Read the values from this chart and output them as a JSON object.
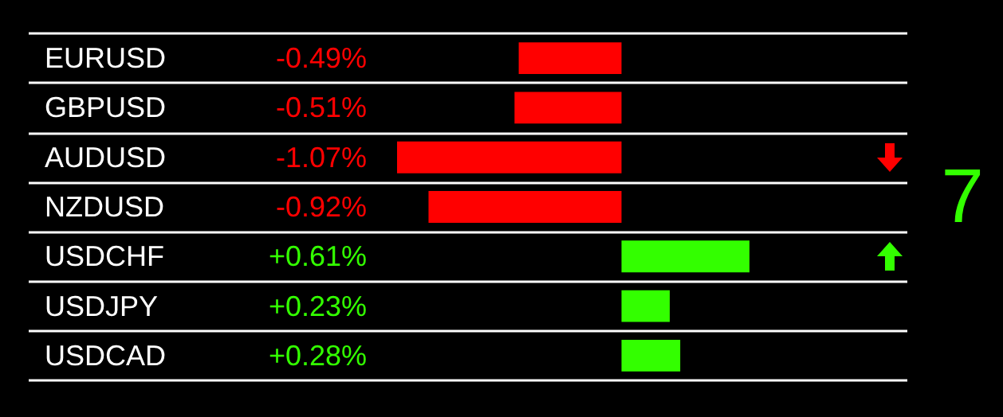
{
  "chart_data": {
    "type": "bar",
    "orientation": "horizontal",
    "categories": [
      "EURUSD",
      "GBPUSD",
      "AUDUSD",
      "NZDUSD",
      "USDCHF",
      "USDJPY",
      "USDCAD"
    ],
    "values": [
      -0.49,
      -0.51,
      -1.07,
      -0.92,
      0.61,
      0.23,
      0.28
    ],
    "colors": [
      "#ff0000",
      "#ff0000",
      "#ff0000",
      "#ff0000",
      "#33ff00",
      "#33ff00",
      "#33ff00"
    ],
    "value_labels": [
      "-0.49%",
      "-0.51%",
      "-1.07%",
      "-0.92%",
      "+0.61%",
      "+0.23%",
      "+0.28%"
    ],
    "grid": "y",
    "annotations": [
      "7"
    ]
  }
}
